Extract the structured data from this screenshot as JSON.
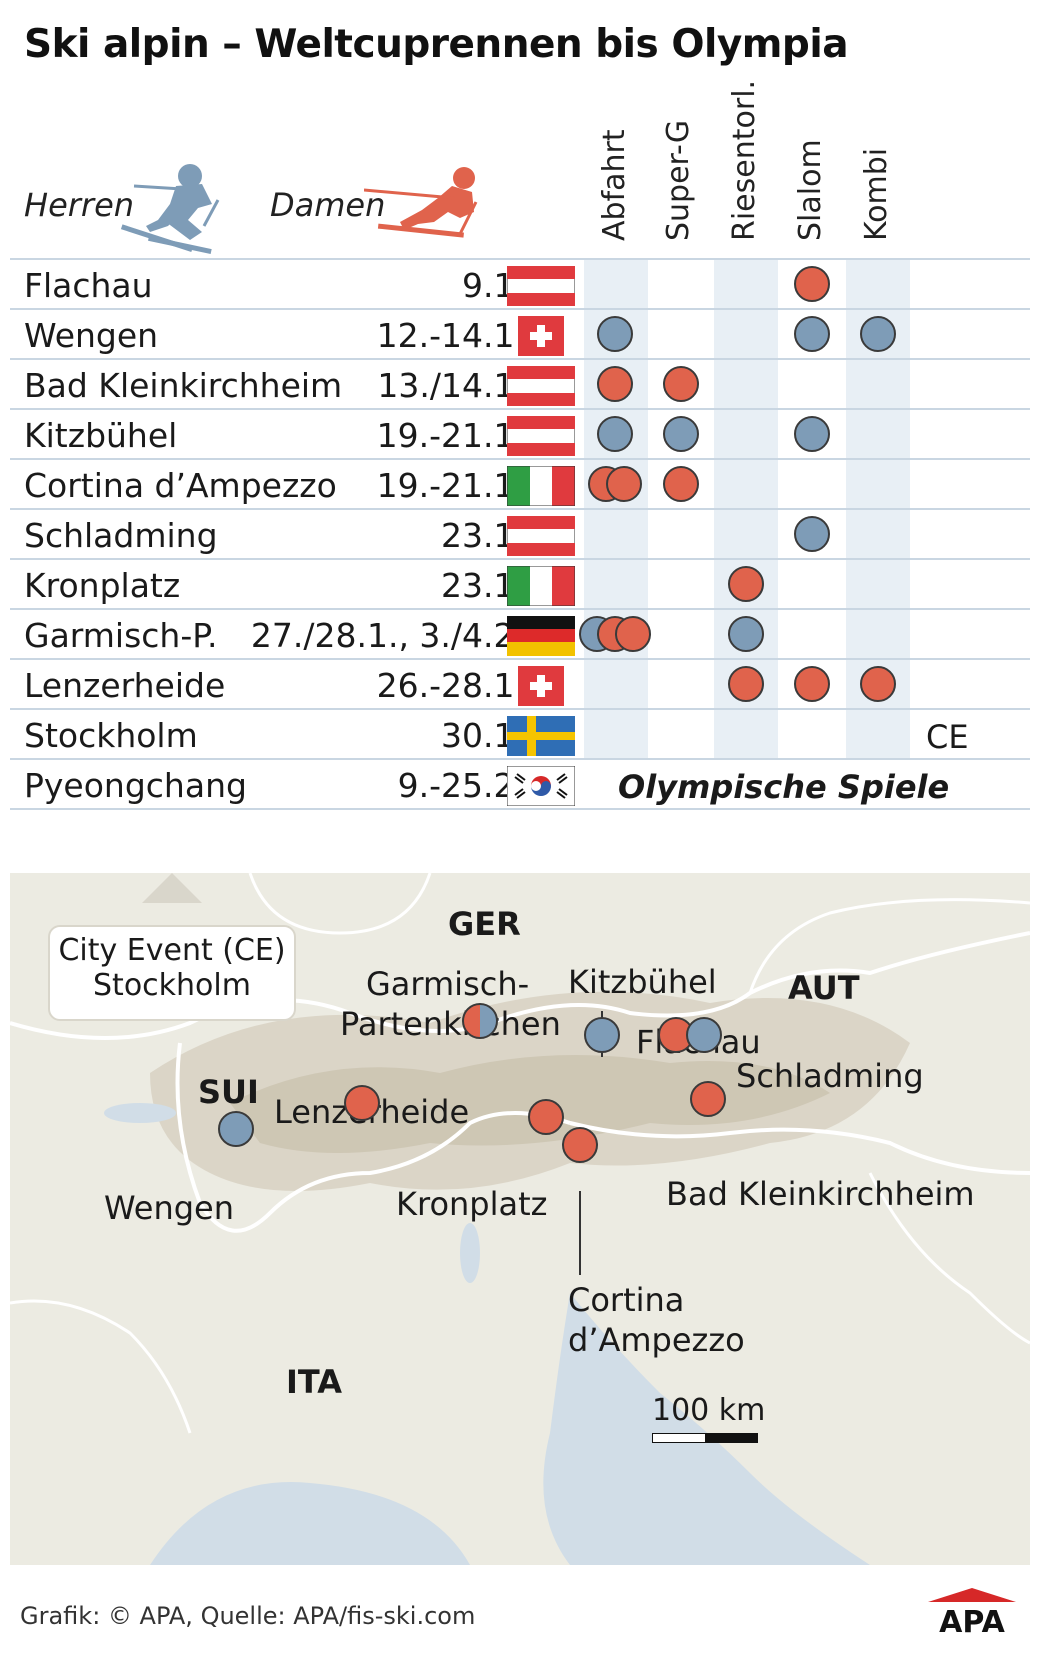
{
  "title": "Ski alpin – Weltcuprennen bis Olympia",
  "legend": {
    "herren": "Herren",
    "damen": "Damen"
  },
  "colors": {
    "herren": "#7e9cb7",
    "damen": "#e0634c",
    "stripe": "#e8eff5",
    "map_bg": "#ebe9df"
  },
  "disciplines": [
    "Abfahrt",
    "Super-G",
    "Riesentorl.",
    "Slalom",
    "Kombi"
  ],
  "races": [
    {
      "place": "Flachau",
      "date": "9.1.",
      "flag": "aut",
      "events": [
        {
          "col": 3,
          "type": "damen"
        }
      ]
    },
    {
      "place": "Wengen",
      "date": "12.-14.1.",
      "flag": "sui",
      "events": [
        {
          "col": 0,
          "type": "herren"
        },
        {
          "col": 3,
          "type": "herren"
        },
        {
          "col": 4,
          "type": "herren"
        }
      ]
    },
    {
      "place": "Bad Kleinkirchheim",
      "date": "13./14.1.",
      "flag": "aut",
      "events": [
        {
          "col": 0,
          "type": "damen"
        },
        {
          "col": 1,
          "type": "damen"
        }
      ]
    },
    {
      "place": "Kitzbühel",
      "date": "19.-21.1.",
      "flag": "aut",
      "events": [
        {
          "col": 0,
          "type": "herren"
        },
        {
          "col": 1,
          "type": "herren"
        },
        {
          "col": 3,
          "type": "herren"
        }
      ]
    },
    {
      "place": "Cortina d’Ampezzo",
      "date": "19.-21.1.",
      "flag": "ita",
      "events": [
        {
          "col": 0,
          "type": "damen"
        },
        {
          "col": 0,
          "type": "damen"
        },
        {
          "col": 1,
          "type": "damen"
        }
      ]
    },
    {
      "place": "Schladming",
      "date": "23.1.",
      "flag": "aut",
      "events": [
        {
          "col": 3,
          "type": "herren"
        }
      ]
    },
    {
      "place": "Kronplatz",
      "date": "23.1.",
      "flag": "ita",
      "events": [
        {
          "col": 2,
          "type": "damen"
        }
      ]
    },
    {
      "place": "Garmisch-P.",
      "date": "27./28.1., 3./4.2.",
      "flag": "ger",
      "events": [
        {
          "col": 0,
          "type": "herren"
        },
        {
          "col": 0,
          "type": "damen"
        },
        {
          "col": 0,
          "type": "damen"
        },
        {
          "col": 2,
          "type": "herren"
        }
      ]
    },
    {
      "place": "Lenzerheide",
      "date": "26.-28.1.",
      "flag": "sui",
      "events": [
        {
          "col": 2,
          "type": "damen"
        },
        {
          "col": 3,
          "type": "damen"
        },
        {
          "col": 4,
          "type": "damen"
        }
      ]
    },
    {
      "place": "Stockholm",
      "date": "30.1.",
      "flag": "swe",
      "events": [],
      "note": "CE"
    },
    {
      "place": "Pyeongchang",
      "date": "9.-25.2.",
      "flag": "kor",
      "events": [],
      "note": "Olympische Spiele"
    }
  ],
  "map": {
    "callout": {
      "line1": "City Event (CE)",
      "line2": "Stockholm"
    },
    "countries": [
      "GER",
      "AUT",
      "SUI",
      "ITA"
    ],
    "labels": {
      "garmisch1": "Garmisch-",
      "garmisch2": "Partenkirchen",
      "kitzbuehel": "Kitzbühel",
      "flachau": "Flachau",
      "schladming": "Schladming",
      "lenzerheide": "Lenzerheide",
      "wengen": "Wengen",
      "kronplatz": "Kronplatz",
      "badklein": "Bad Kleinkirchheim",
      "cortina1": "Cortina",
      "cortina2": "d’Ampezzo"
    },
    "scale": "100 km"
  },
  "footer": "Grafik: © APA, Quelle: APA/fis-ski.com",
  "logo": "APA"
}
